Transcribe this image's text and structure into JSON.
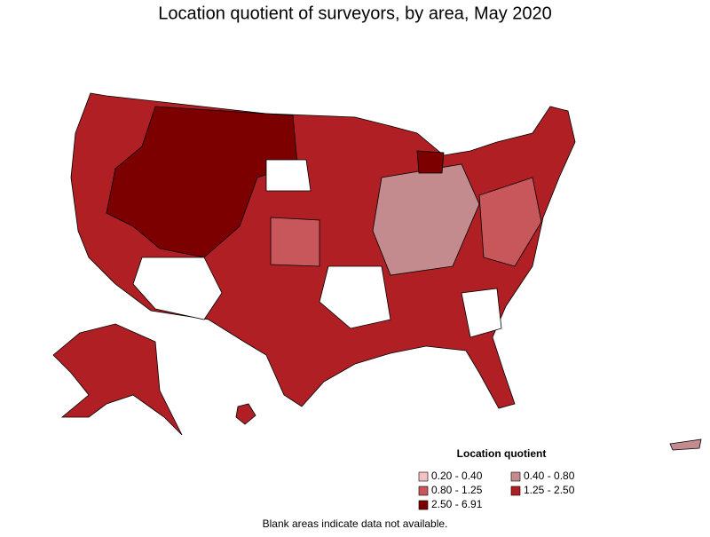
{
  "title": "Location quotient of surveyors, by area, May 2020",
  "legend": {
    "title": "Location quotient",
    "items": [
      {
        "label": "0.20 - 0.40",
        "color": "#f4c2c5"
      },
      {
        "label": "0.40 - 0.80",
        "color": "#c48b8e"
      },
      {
        "label": "0.80 - 1.25",
        "color": "#c8575c"
      },
      {
        "label": "1.25 - 2.50",
        "color": "#b01f24"
      },
      {
        "label": "2.50 - 6.91",
        "color": "#7d0000"
      }
    ]
  },
  "footnote": "Blank areas indicate data not available."
}
